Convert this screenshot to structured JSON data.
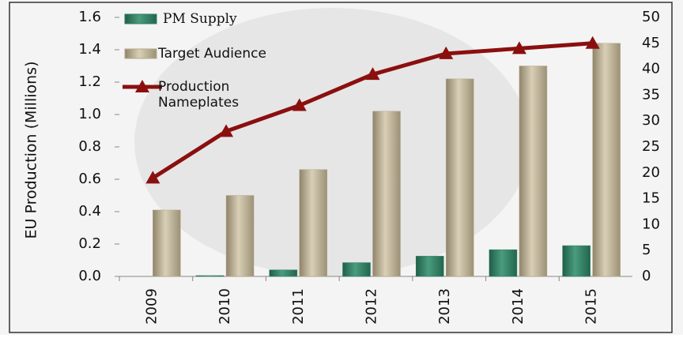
{
  "chart_data": {
    "type": "bar",
    "y_label": "EU Production (Millions)",
    "categories": [
      "2009",
      "2010",
      "2011",
      "2012",
      "2013",
      "2014",
      "2015"
    ],
    "series": [
      {
        "name": "PM Supply",
        "type": "bar",
        "color": "#2e7d62",
        "values": [
          0,
          0.005,
          0.04,
          0.085,
          0.125,
          0.165,
          0.19
        ]
      },
      {
        "name": "Target Audience",
        "type": "bar",
        "color": "#b5a98a",
        "values": [
          0.41,
          0.5,
          0.66,
          1.02,
          1.22,
          1.3,
          1.44
        ]
      },
      {
        "name": "Production Nameplates",
        "type": "line",
        "axis": "y2",
        "color": "#8b0f0f",
        "values": [
          19,
          28,
          33,
          39,
          43,
          44,
          45
        ]
      }
    ],
    "ylim": [
      0,
      1.6
    ],
    "yticks": [
      {
        "value": 0,
        "label": "0.0"
      },
      0.2,
      0.4,
      0.6,
      0.8,
      {
        "value": 1,
        "label": "1.0"
      },
      1.2,
      1.4,
      1.6
    ],
    "y2lim": [
      0,
      50
    ],
    "y2ticks": [
      0,
      5,
      10,
      15,
      20,
      25,
      30,
      35,
      40,
      45,
      50
    ],
    "legend": "upper left"
  }
}
